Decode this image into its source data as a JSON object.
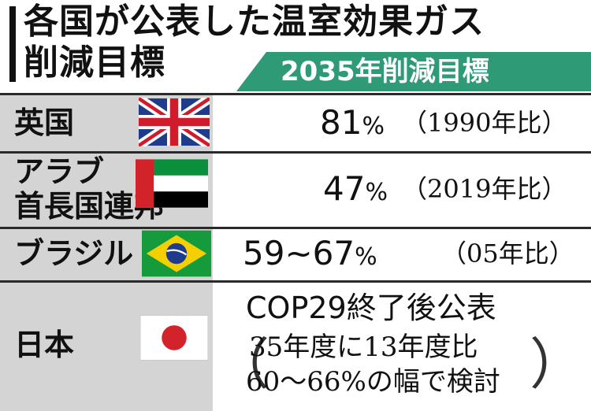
{
  "title": {
    "line1": "各国が公表した温室効果ガス",
    "line2": "削減目標"
  },
  "header": {
    "label": "2035年削減目標",
    "color": "#2e9a76"
  },
  "rows": [
    {
      "country": "英国",
      "flag": "uk-flag-icon",
      "value": "81",
      "unit": "%",
      "baseline": "（1990年比）"
    },
    {
      "country_line1": "アラブ",
      "country_line2": "首長国連邦",
      "flag": "uae-flag-icon",
      "value": "47",
      "unit": "%",
      "baseline": "（2019年比）"
    },
    {
      "country": "ブラジル",
      "flag": "brazil-flag-icon",
      "value": "59~67",
      "unit": "%",
      "baseline": "（05年比）"
    },
    {
      "country": "日本",
      "flag": "japan-flag-icon",
      "status": "COP29終了後公表",
      "detail_line1": "35年度に13年度比",
      "detail_line2": "60～66%の幅で検討",
      "paren_open": "（",
      "paren_close": "）"
    }
  ]
}
